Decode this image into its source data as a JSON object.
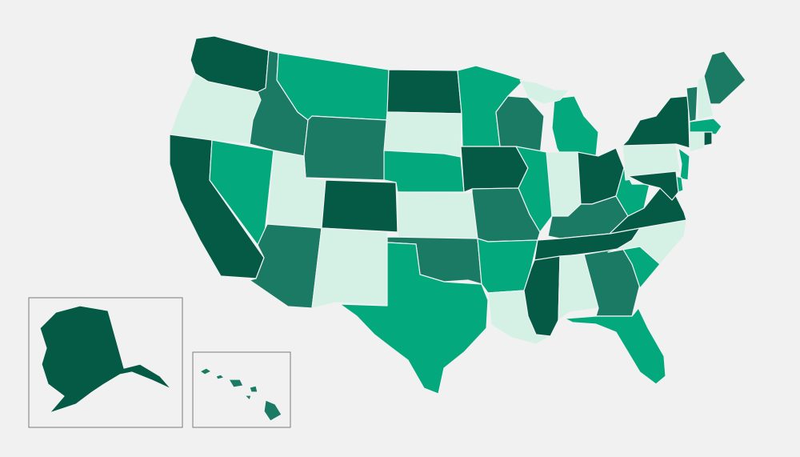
{
  "palette": {
    "background": "#f1f1f1",
    "shades": {
      "darkest": "#055a45",
      "dark": "#1b7a64",
      "medium": "#03a87c",
      "light": "#d5f0e4"
    }
  },
  "states": [
    {
      "abbr": "WA",
      "shade": "darkest"
    },
    {
      "abbr": "OR",
      "shade": "light"
    },
    {
      "abbr": "CA",
      "shade": "darkest"
    },
    {
      "abbr": "NV",
      "shade": "medium"
    },
    {
      "abbr": "ID",
      "shade": "dark"
    },
    {
      "abbr": "MT",
      "shade": "medium"
    },
    {
      "abbr": "WY",
      "shade": "dark"
    },
    {
      "abbr": "UT",
      "shade": "light"
    },
    {
      "abbr": "AZ",
      "shade": "dark"
    },
    {
      "abbr": "CO",
      "shade": "darkest"
    },
    {
      "abbr": "NM",
      "shade": "light"
    },
    {
      "abbr": "ND",
      "shade": "darkest"
    },
    {
      "abbr": "SD",
      "shade": "light"
    },
    {
      "abbr": "NE",
      "shade": "medium"
    },
    {
      "abbr": "KS",
      "shade": "light"
    },
    {
      "abbr": "OK",
      "shade": "dark"
    },
    {
      "abbr": "TX",
      "shade": "medium"
    },
    {
      "abbr": "MN",
      "shade": "medium"
    },
    {
      "abbr": "IA",
      "shade": "darkest"
    },
    {
      "abbr": "MO",
      "shade": "dark"
    },
    {
      "abbr": "AR",
      "shade": "medium"
    },
    {
      "abbr": "LA",
      "shade": "light"
    },
    {
      "abbr": "WI",
      "shade": "dark"
    },
    {
      "abbr": "IL",
      "shade": "medium"
    },
    {
      "abbr": "MI",
      "shade": "medium"
    },
    {
      "abbr": "MI-UP",
      "shade": "light"
    },
    {
      "abbr": "IN",
      "shade": "light"
    },
    {
      "abbr": "OH",
      "shade": "darkest"
    },
    {
      "abbr": "KY",
      "shade": "dark"
    },
    {
      "abbr": "TN",
      "shade": "darkest"
    },
    {
      "abbr": "MS",
      "shade": "darkest"
    },
    {
      "abbr": "AL",
      "shade": "light"
    },
    {
      "abbr": "GA",
      "shade": "dark"
    },
    {
      "abbr": "FL",
      "shade": "medium"
    },
    {
      "abbr": "SC",
      "shade": "medium"
    },
    {
      "abbr": "NC",
      "shade": "light"
    },
    {
      "abbr": "VA",
      "shade": "darkest"
    },
    {
      "abbr": "WV",
      "shade": "medium"
    },
    {
      "abbr": "PA",
      "shade": "light"
    },
    {
      "abbr": "NY",
      "shade": "darkest"
    },
    {
      "abbr": "NJ",
      "shade": "medium"
    },
    {
      "abbr": "DE",
      "shade": "medium"
    },
    {
      "abbr": "MD",
      "shade": "darkest"
    },
    {
      "abbr": "VT",
      "shade": "dark"
    },
    {
      "abbr": "NH",
      "shade": "light"
    },
    {
      "abbr": "ME",
      "shade": "dark"
    },
    {
      "abbr": "MA",
      "shade": "medium"
    },
    {
      "abbr": "CT",
      "shade": "light"
    },
    {
      "abbr": "RI",
      "shade": "darkest"
    },
    {
      "abbr": "AK",
      "shade": "darkest"
    },
    {
      "abbr": "HI",
      "shade": "dark"
    }
  ]
}
